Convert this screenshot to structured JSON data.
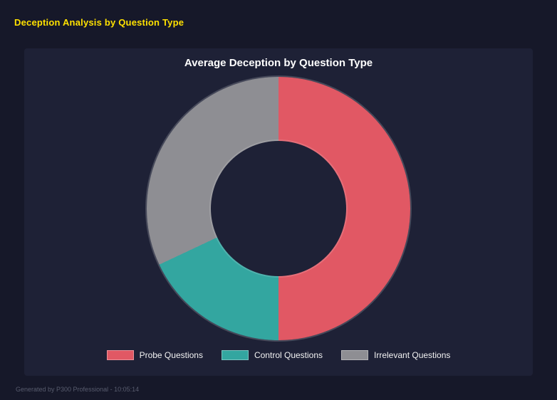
{
  "page": {
    "title": "Deception Analysis by Question Type",
    "footer": "Generated by P300 Professional - 10:05:14"
  },
  "panel": {
    "background": "#1e2136"
  },
  "colors": {
    "page_title": "#ffe100",
    "background": "#161829"
  },
  "chart_data": {
    "type": "pie",
    "donut": true,
    "hole_ratio": 0.51,
    "title": "Average Deception by Question Type",
    "categories": [
      "Probe Questions",
      "Control Questions",
      "Irrelevant Questions"
    ],
    "values": [
      50,
      18,
      32
    ],
    "colors": [
      "#e15864",
      "#33a6a0",
      "#8e8e93"
    ],
    "legend_position": "bottom",
    "start_angle_deg": 0,
    "direction": "clockwise"
  }
}
